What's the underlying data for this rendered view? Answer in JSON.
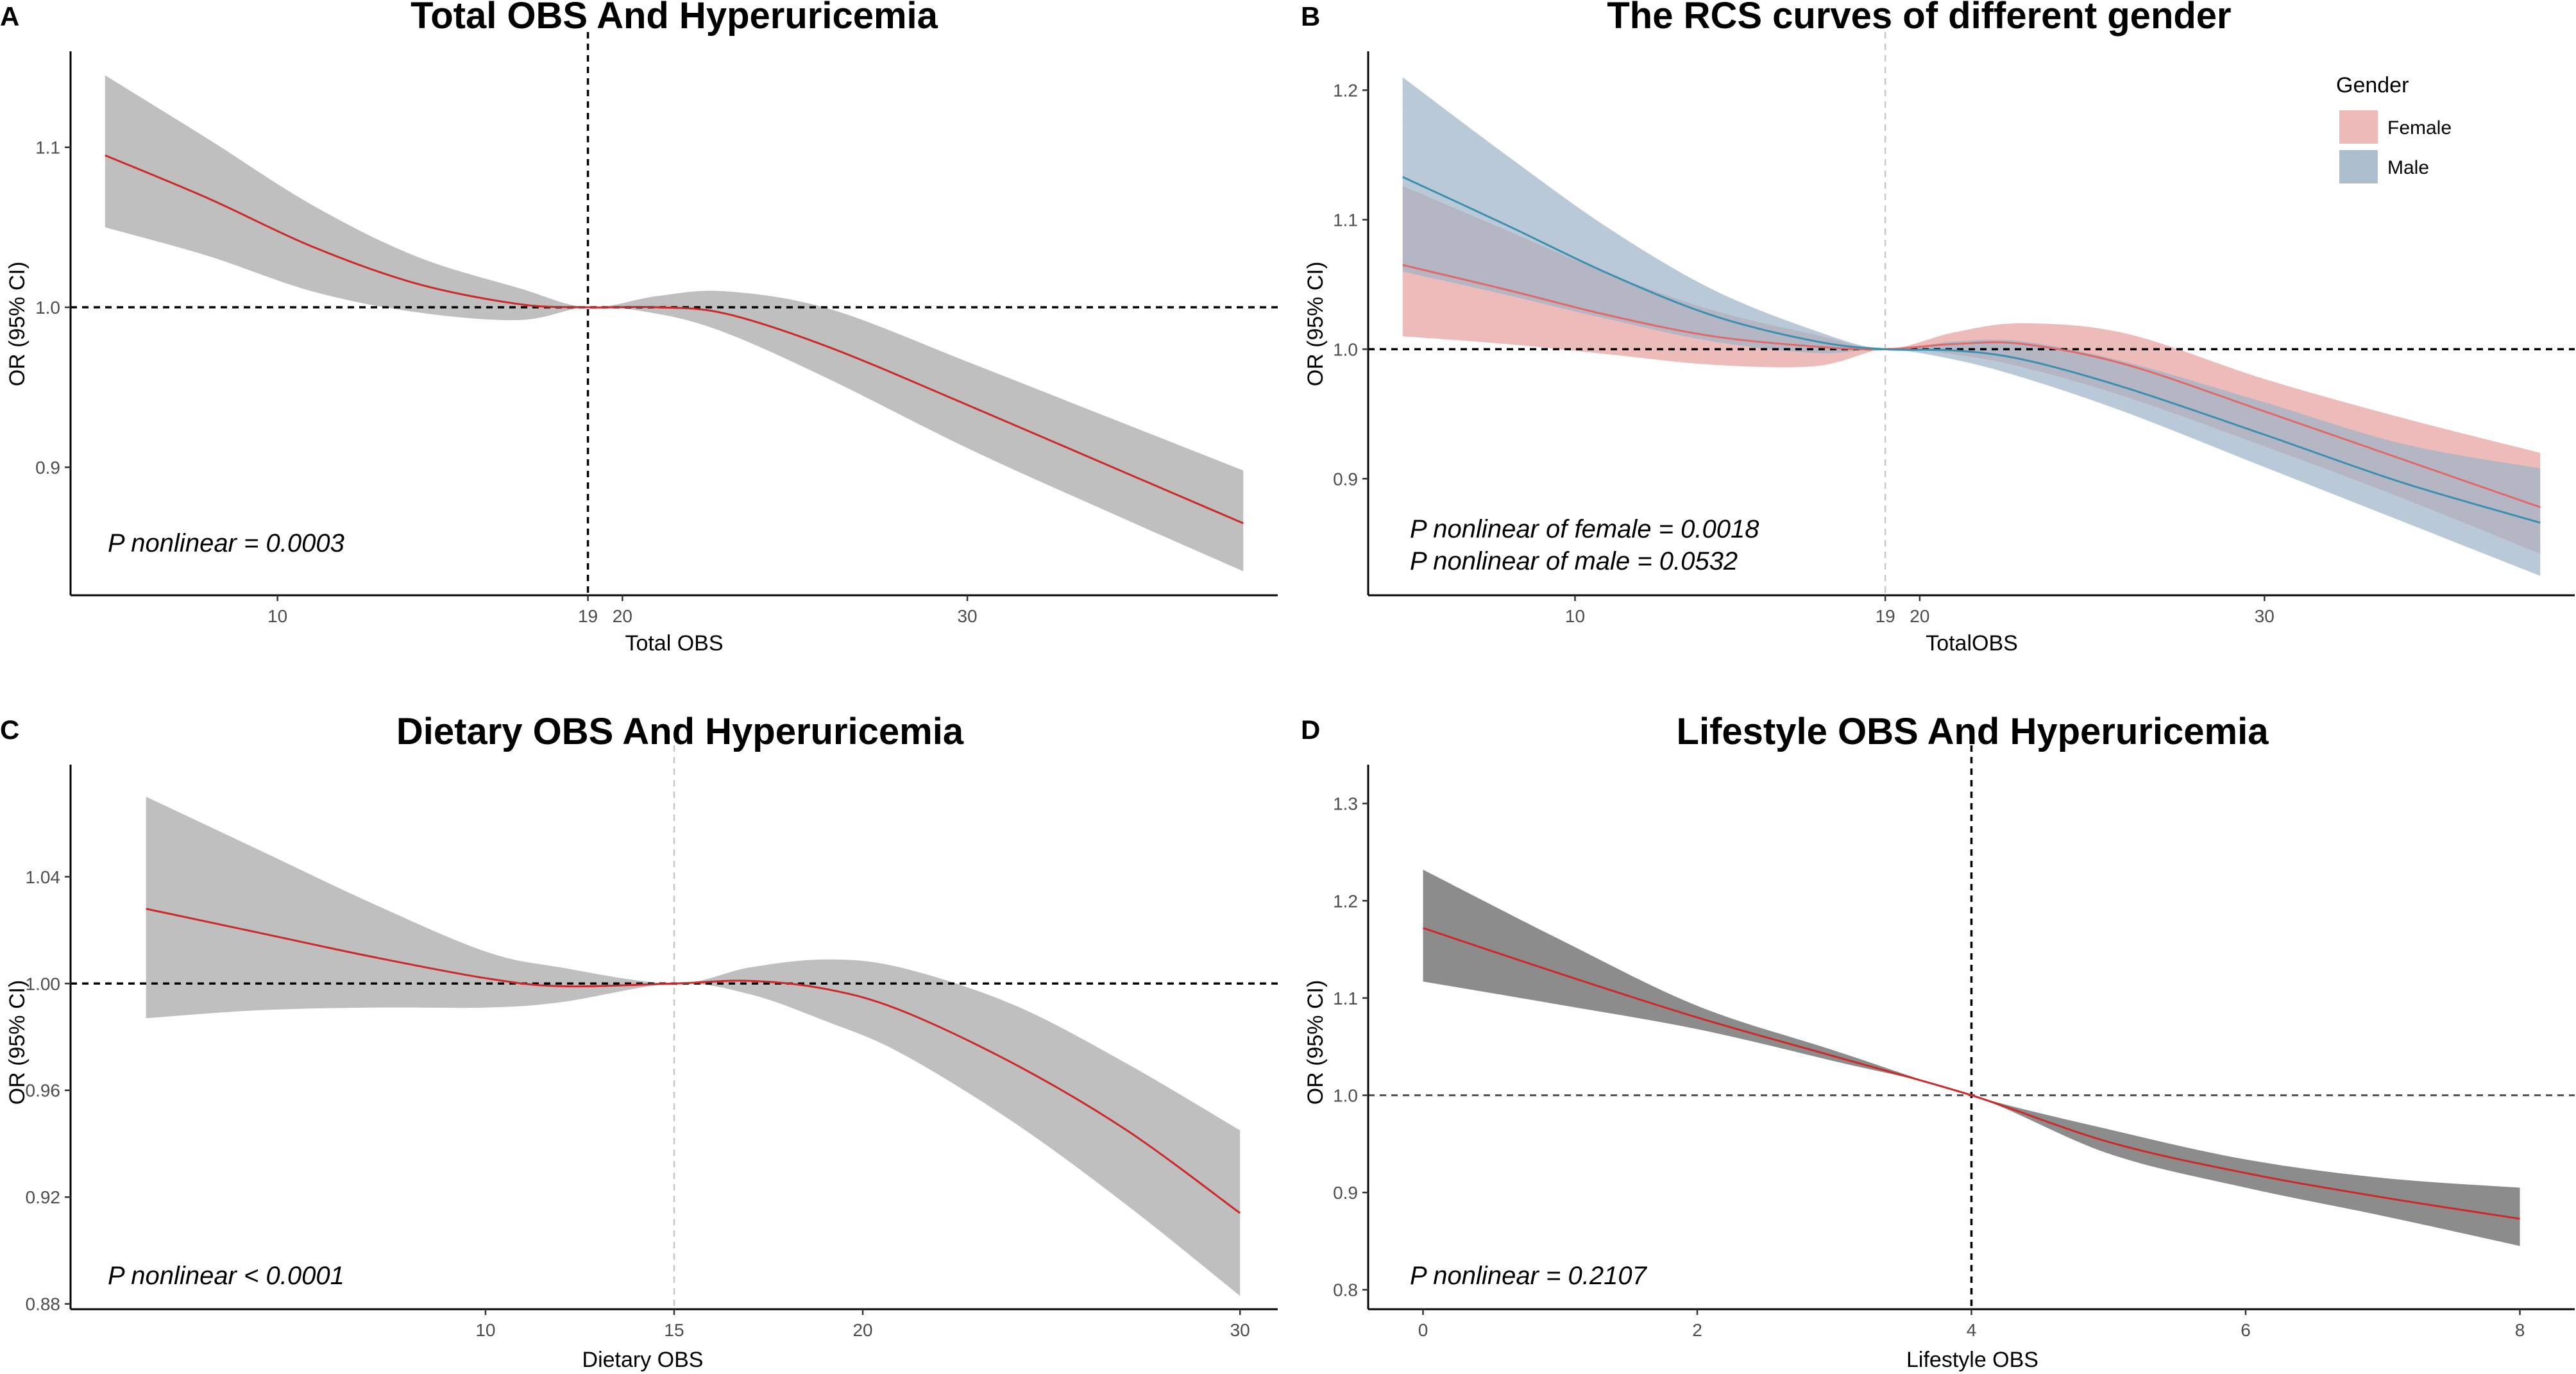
{
  "chart_data": [
    {
      "panel": "A",
      "type": "line",
      "title": "Total OBS And Hyperuricemia",
      "xlabel": "Total OBS",
      "ylabel": "OR (95% CI)",
      "xlim": [
        4,
        39
      ],
      "ylim": [
        0.82,
        1.16
      ],
      "x_ticks": [
        10,
        19,
        20,
        30
      ],
      "x_tick_labels": [
        "10",
        "19",
        "20",
        "30"
      ],
      "y_ticks": [
        0.9,
        1.0,
        1.1
      ],
      "y_tick_labels": [
        "0.9",
        "1.0",
        "1.1"
      ],
      "ref_x": 19,
      "ref_y": 1.0,
      "ref_x_style": "dark",
      "ref_y_style": "dark",
      "annotation": "P nonlinear = 0.0003",
      "series": [
        {
          "name": "OR",
          "color": "#cc2a2a",
          "band_color": "#bfbfbf",
          "x": [
            5,
            8,
            11,
            14,
            17,
            19,
            21,
            23,
            26,
            30,
            34,
            38
          ],
          "y": [
            1.095,
            1.068,
            1.038,
            1.015,
            1.002,
            1.0,
            1.0,
            0.996,
            0.975,
            0.939,
            0.902,
            0.865
          ],
          "lower": [
            1.05,
            1.032,
            1.01,
            0.997,
            0.992,
            1.0,
            0.996,
            0.984,
            0.955,
            0.912,
            0.873,
            0.835
          ],
          "upper": [
            1.145,
            1.105,
            1.064,
            1.032,
            1.012,
            1.0,
            1.007,
            1.01,
            0.999,
            0.966,
            0.932,
            0.898
          ]
        }
      ]
    },
    {
      "panel": "B",
      "type": "line",
      "title": "The RCS curves of different gender",
      "xlabel": "TotalOBS",
      "ylabel": "OR (95% CI)",
      "xlim": [
        4,
        39
      ],
      "ylim": [
        0.81,
        1.23
      ],
      "x_ticks": [
        10,
        19,
        20,
        30
      ],
      "x_tick_labels": [
        "10",
        "19",
        "20",
        "30"
      ],
      "y_ticks": [
        0.9,
        1.0,
        1.1,
        1.2
      ],
      "y_tick_labels": [
        "0.9",
        "1.0",
        "1.1",
        "1.2"
      ],
      "ref_x": 19,
      "ref_y": 1.0,
      "ref_x_style": "light",
      "ref_y_style": "dark",
      "annotation_lines": [
        "P nonlinear of female = 0.0018",
        "P nonlinear of male = 0.0532"
      ],
      "legend": {
        "title": "Gender",
        "position": "top-right"
      },
      "series": [
        {
          "name": "Female",
          "color": "#e06a6a",
          "band_color": "#e8a1a1",
          "x": [
            5,
            8,
            11,
            14,
            17,
            19,
            21,
            23,
            26,
            30,
            34,
            38
          ],
          "y": [
            1.065,
            1.046,
            1.026,
            1.01,
            1.002,
            1.0,
            1.004,
            1.004,
            0.988,
            0.952,
            0.915,
            0.878
          ],
          "lower": [
            1.01,
            1.004,
            0.996,
            0.988,
            0.987,
            1.0,
            0.996,
            0.986,
            0.963,
            0.925,
            0.885,
            0.842
          ],
          "upper": [
            1.126,
            1.092,
            1.058,
            1.03,
            1.011,
            1.0,
            1.013,
            1.02,
            1.012,
            0.977,
            0.947,
            0.92
          ]
        },
        {
          "name": "Male",
          "color": "#3d8fb0",
          "band_color": "#9fb4c7",
          "x": [
            5,
            8,
            11,
            14,
            17,
            19,
            21,
            23,
            26,
            30,
            34,
            38
          ],
          "y": [
            1.133,
            1.096,
            1.058,
            1.026,
            1.006,
            1.0,
            0.999,
            0.992,
            0.97,
            0.934,
            0.897,
            0.866
          ],
          "lower": [
            1.06,
            1.042,
            1.023,
            1.006,
            0.997,
            1.0,
            0.992,
            0.978,
            0.951,
            0.909,
            0.867,
            0.825
          ],
          "upper": [
            1.21,
            1.15,
            1.093,
            1.046,
            1.014,
            1.0,
            1.006,
            1.006,
            0.99,
            0.959,
            0.927,
            0.908
          ]
        }
      ]
    },
    {
      "panel": "C",
      "type": "line",
      "title": "Dietary OBS And Hyperuricemia",
      "xlabel": "Dietary OBS",
      "ylabel": "OR (95% CI)",
      "xlim": [
        -1,
        31
      ],
      "ylim": [
        0.878,
        1.082
      ],
      "x_ticks": [
        10,
        15,
        20,
        30
      ],
      "x_tick_labels": [
        "10",
        "15",
        "20",
        "30"
      ],
      "y_ticks": [
        0.88,
        0.92,
        0.96,
        1.0,
        1.04
      ],
      "y_tick_labels": [
        "0.88",
        "0.92",
        "0.96",
        "1.00",
        "1.04"
      ],
      "ref_x": 15,
      "ref_y": 1.0,
      "ref_x_style": "light",
      "ref_y_style": "dark",
      "annotation": "P nonlinear < 0.0001",
      "series": [
        {
          "name": "OR",
          "color": "#cc2a2a",
          "band_color": "#bfbfbf",
          "x": [
            1,
            4,
            7,
            10,
            12,
            15,
            17,
            19,
            21,
            24,
            27,
            30
          ],
          "y": [
            1.028,
            1.019,
            1.01,
            1.002,
            0.999,
            1.0,
            1.001,
            0.998,
            0.99,
            0.97,
            0.945,
            0.914
          ],
          "lower": [
            0.987,
            0.99,
            0.991,
            0.991,
            0.993,
            1.0,
            0.996,
            0.986,
            0.974,
            0.948,
            0.917,
            0.883
          ],
          "upper": [
            1.07,
            1.05,
            1.03,
            1.012,
            1.006,
            1.0,
            1.006,
            1.009,
            1.006,
            0.992,
            0.97,
            0.945
          ]
        }
      ]
    },
    {
      "panel": "D",
      "type": "line",
      "title": "Lifestyle OBS And Hyperuricemia",
      "xlabel": "Lifestyle OBS",
      "ylabel": "OR (95% CI)",
      "xlim": [
        -0.4,
        8.4
      ],
      "ylim": [
        0.78,
        1.34
      ],
      "x_ticks": [
        0,
        2,
        4,
        6,
        8
      ],
      "x_tick_labels": [
        "0",
        "2",
        "4",
        "6",
        "8"
      ],
      "y_ticks": [
        0.8,
        0.9,
        1.0,
        1.1,
        1.2,
        1.3
      ],
      "y_tick_labels": [
        "0.8",
        "0.9",
        "1.0",
        "1.1",
        "1.2",
        "1.3"
      ],
      "ref_x": 4,
      "ref_y": 1.0,
      "ref_x_style": "dark",
      "ref_y_style": "medium",
      "annotation": "P nonlinear = 0.2107",
      "series": [
        {
          "name": "OR",
          "color": "#cc2a2a",
          "band_color": "#8c8c8c",
          "x": [
            0,
            1,
            2,
            3,
            4,
            5,
            6,
            7,
            8
          ],
          "y": [
            1.172,
            1.125,
            1.08,
            1.04,
            1.0,
            0.952,
            0.92,
            0.895,
            0.873
          ],
          "lower": [
            1.117,
            1.093,
            1.068,
            1.035,
            1.0,
            0.94,
            0.905,
            0.876,
            0.845
          ],
          "upper": [
            1.232,
            1.16,
            1.092,
            1.046,
            1.0,
            0.965,
            0.934,
            0.915,
            0.905
          ]
        }
      ]
    }
  ]
}
